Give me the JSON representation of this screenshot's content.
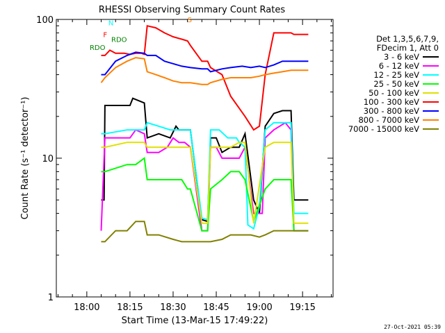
{
  "chart_data": {
    "type": "line",
    "title": "RHESSI Observing Summary Count Rates",
    "xlabel": "Start Time (13-Mar-15 17:49:22)",
    "ylabel": "Count Rate (s⁻¹ detector⁻¹)",
    "yscale": "log",
    "ylim": [
      1,
      100
    ],
    "y_ticks": [
      "1",
      "10",
      "100"
    ],
    "x_tick_labels": [
      "18:00",
      "18:15",
      "18:30",
      "18:45",
      "19:00",
      "19:15"
    ],
    "x_tick_minutes": [
      0,
      15,
      30,
      45,
      60,
      75
    ],
    "xlim_minutes": [
      -10.6,
      85.6
    ],
    "legend_header": [
      "Det 1,3,5,6,7,9,",
      "FDecim 1, Att 0"
    ],
    "series": [
      {
        "name": "3 - 6 keV",
        "color": "#000000",
        "data": [
          [
            5,
            5
          ],
          [
            6,
            5
          ],
          [
            6.3,
            24
          ],
          [
            15,
            24
          ],
          [
            16,
            27
          ],
          [
            20,
            25
          ],
          [
            21,
            14
          ],
          [
            25,
            15
          ],
          [
            29,
            14
          ],
          [
            31,
            17
          ],
          [
            32,
            16
          ],
          [
            34,
            16
          ],
          [
            36,
            16
          ],
          [
            40,
            3.6
          ],
          [
            42,
            3.5
          ],
          [
            43,
            14
          ],
          [
            45,
            14
          ],
          [
            47,
            11
          ],
          [
            50,
            12
          ],
          [
            53,
            12
          ],
          [
            55,
            15
          ],
          [
            58,
            5
          ],
          [
            60,
            4
          ],
          [
            62,
            17
          ],
          [
            65,
            21
          ],
          [
            68,
            22
          ],
          [
            71,
            22
          ],
          [
            72,
            5
          ],
          [
            77,
            5
          ]
        ]
      },
      {
        "name": "6 - 12 keV",
        "color": "#ff00ff",
        "data": [
          [
            5,
            3
          ],
          [
            6.3,
            14
          ],
          [
            15,
            14
          ],
          [
            17,
            16
          ],
          [
            20,
            15
          ],
          [
            21,
            11
          ],
          [
            25,
            11
          ],
          [
            28,
            12
          ],
          [
            30,
            14
          ],
          [
            32,
            13
          ],
          [
            34,
            13
          ],
          [
            36,
            12
          ],
          [
            40,
            3
          ],
          [
            42,
            3
          ],
          [
            43,
            12
          ],
          [
            45,
            12
          ],
          [
            47,
            10
          ],
          [
            50,
            10
          ],
          [
            53,
            10
          ],
          [
            55,
            12
          ],
          [
            58,
            4
          ],
          [
            61,
            4
          ],
          [
            62,
            14
          ],
          [
            65,
            16
          ],
          [
            69,
            18
          ],
          [
            71,
            16
          ],
          [
            72,
            3
          ],
          [
            77,
            3
          ]
        ]
      },
      {
        "name": "12 - 25 keV",
        "color": "#00ffff",
        "data": [
          [
            5,
            15
          ],
          [
            6.3,
            15
          ],
          [
            14,
            16
          ],
          [
            17,
            16
          ],
          [
            20,
            16
          ],
          [
            21,
            18
          ],
          [
            25,
            17
          ],
          [
            29,
            16
          ],
          [
            31,
            16
          ],
          [
            33,
            16
          ],
          [
            35,
            16
          ],
          [
            36,
            16
          ],
          [
            40,
            3.7
          ],
          [
            42,
            3.6
          ],
          [
            43,
            16
          ],
          [
            46,
            16
          ],
          [
            49,
            14
          ],
          [
            52,
            14
          ],
          [
            53,
            13
          ],
          [
            55,
            12
          ],
          [
            56,
            3.3
          ],
          [
            58,
            3.1
          ],
          [
            60,
            4.5
          ],
          [
            62,
            16
          ],
          [
            65,
            18
          ],
          [
            68,
            18
          ],
          [
            71,
            18
          ],
          [
            72,
            4
          ],
          [
            77,
            4
          ]
        ]
      },
      {
        "name": "25 - 50 keV",
        "color": "#00ff00",
        "data": [
          [
            5,
            8
          ],
          [
            6.3,
            8
          ],
          [
            14,
            9
          ],
          [
            17,
            9
          ],
          [
            20,
            10
          ],
          [
            21,
            7
          ],
          [
            25,
            7
          ],
          [
            29,
            7
          ],
          [
            31,
            7
          ],
          [
            33,
            7
          ],
          [
            35,
            6
          ],
          [
            36,
            6
          ],
          [
            40,
            3
          ],
          [
            42,
            3
          ],
          [
            43,
            6
          ],
          [
            47,
            7
          ],
          [
            50,
            8
          ],
          [
            53,
            8
          ],
          [
            55,
            7
          ],
          [
            58,
            3.5
          ],
          [
            62,
            6
          ],
          [
            65,
            7
          ],
          [
            69,
            7
          ],
          [
            71,
            7
          ],
          [
            72,
            3
          ],
          [
            77,
            3
          ]
        ]
      },
      {
        "name": "50 - 100 keV",
        "color": "#e0e000",
        "data": [
          [
            5,
            12
          ],
          [
            6.3,
            12
          ],
          [
            14,
            13
          ],
          [
            17,
            13
          ],
          [
            20,
            13
          ],
          [
            21,
            12
          ],
          [
            25,
            12
          ],
          [
            29,
            12
          ],
          [
            31,
            12
          ],
          [
            33,
            12
          ],
          [
            35,
            12
          ],
          [
            36,
            12
          ],
          [
            40,
            3.4
          ],
          [
            42,
            3.4
          ],
          [
            43,
            12
          ],
          [
            47,
            12
          ],
          [
            50,
            12
          ],
          [
            53,
            13
          ],
          [
            55,
            13
          ],
          [
            58,
            3.4
          ],
          [
            62,
            12
          ],
          [
            65,
            13
          ],
          [
            69,
            13
          ],
          [
            71,
            13
          ],
          [
            72,
            3.4
          ],
          [
            77,
            3.4
          ]
        ]
      },
      {
        "name": "100 - 300 keV",
        "color": "#ff0000",
        "data": [
          [
            5,
            55
          ],
          [
            6.3,
            55
          ],
          [
            8,
            60
          ],
          [
            10,
            57
          ],
          [
            13,
            57
          ],
          [
            15,
            56
          ],
          [
            17,
            57
          ],
          [
            19,
            57
          ],
          [
            20,
            56
          ],
          [
            21,
            90
          ],
          [
            24,
            87
          ],
          [
            27,
            80
          ],
          [
            30,
            75
          ],
          [
            33,
            72
          ],
          [
            35,
            70
          ],
          [
            36,
            65
          ],
          [
            40,
            50
          ],
          [
            42,
            50
          ],
          [
            43,
            45
          ],
          [
            47,
            40
          ],
          [
            50,
            28
          ],
          [
            55,
            20
          ],
          [
            58,
            16
          ],
          [
            60,
            17
          ],
          [
            62,
            40
          ],
          [
            65,
            80
          ],
          [
            68,
            80
          ],
          [
            71,
            80
          ],
          [
            72,
            78
          ],
          [
            77,
            78
          ]
        ]
      },
      {
        "name": "300 - 800 keV",
        "color": "#0000ff",
        "data": [
          [
            5,
            40
          ],
          [
            6.3,
            40
          ],
          [
            10,
            50
          ],
          [
            14,
            55
          ],
          [
            17,
            58
          ],
          [
            20,
            57
          ],
          [
            21,
            55
          ],
          [
            24,
            55
          ],
          [
            27,
            50
          ],
          [
            30,
            48
          ],
          [
            33,
            46
          ],
          [
            36,
            45
          ],
          [
            40,
            44
          ],
          [
            42,
            44
          ],
          [
            43,
            42
          ],
          [
            47,
            44
          ],
          [
            50,
            45
          ],
          [
            54,
            46
          ],
          [
            57,
            45
          ],
          [
            60,
            46
          ],
          [
            62,
            45
          ],
          [
            65,
            47
          ],
          [
            68,
            50
          ],
          [
            71,
            50
          ],
          [
            72,
            50
          ],
          [
            77,
            50
          ]
        ]
      },
      {
        "name": "800 - 7000 keV",
        "color": "#ff8000",
        "data": [
          [
            5,
            35
          ],
          [
            6.3,
            38
          ],
          [
            10,
            45
          ],
          [
            14,
            50
          ],
          [
            17,
            53
          ],
          [
            20,
            52
          ],
          [
            21,
            42
          ],
          [
            24,
            40
          ],
          [
            27,
            38
          ],
          [
            30,
            36
          ],
          [
            33,
            35
          ],
          [
            36,
            35
          ],
          [
            40,
            34
          ],
          [
            42,
            34
          ],
          [
            43,
            35
          ],
          [
            47,
            37
          ],
          [
            50,
            38
          ],
          [
            54,
            38
          ],
          [
            57,
            38
          ],
          [
            60,
            39
          ],
          [
            62,
            40
          ],
          [
            65,
            41
          ],
          [
            68,
            42
          ],
          [
            71,
            43
          ],
          [
            72,
            43
          ],
          [
            77,
            43
          ]
        ]
      },
      {
        "name": "7000 - 15000 keV",
        "color": "#808000",
        "data": [
          [
            5,
            2.5
          ],
          [
            6.3,
            2.5
          ],
          [
            10,
            3
          ],
          [
            14,
            3
          ],
          [
            17,
            3.5
          ],
          [
            20,
            3.5
          ],
          [
            21,
            2.8
          ],
          [
            25,
            2.8
          ],
          [
            30,
            2.6
          ],
          [
            33,
            2.5
          ],
          [
            36,
            2.5
          ],
          [
            40,
            2.5
          ],
          [
            42,
            2.5
          ],
          [
            43,
            2.5
          ],
          [
            47,
            2.6
          ],
          [
            50,
            2.8
          ],
          [
            54,
            2.8
          ],
          [
            57,
            2.8
          ],
          [
            60,
            2.7
          ],
          [
            62,
            2.8
          ],
          [
            65,
            3
          ],
          [
            68,
            3
          ],
          [
            71,
            3
          ],
          [
            72,
            3
          ],
          [
            77,
            3
          ]
        ]
      }
    ],
    "annotations": [
      {
        "text": "N",
        "color": "#00ffff",
        "x_min": 7.5,
        "y": 95
      },
      {
        "text": "F",
        "color": "#ff0000",
        "x_min": 5.7,
        "y": 78
      },
      {
        "text": "RDO",
        "color": "#008000",
        "x_min": 8.5,
        "y": 72
      },
      {
        "text": "RDO",
        "color": "#008000",
        "x_min": 1,
        "y": 63
      },
      {
        "text": "S",
        "color": "#ff8000",
        "x_min": 35,
        "y": 100
      }
    ],
    "footer_timestamp": "27-Oct-2021 05:39"
  }
}
